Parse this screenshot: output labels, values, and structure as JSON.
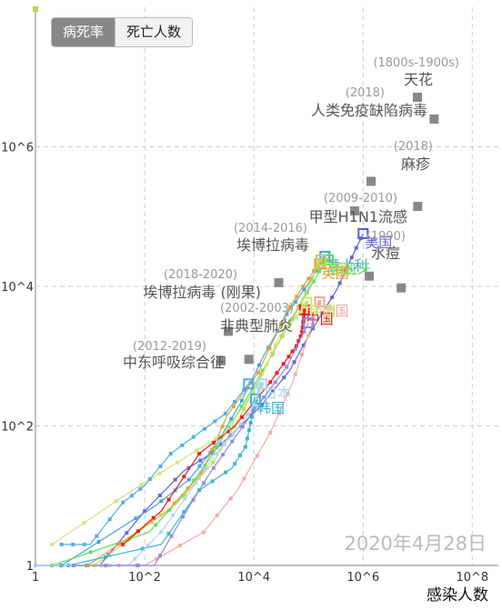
{
  "toggle": {
    "active_label": "病死率",
    "inactive_label": "死亡人数"
  },
  "date_text": "2020年4月28日",
  "chart_data": {
    "type": "scatter",
    "xlabel": "感染人数",
    "ylabel": "",
    "xscale": "log",
    "yscale": "log",
    "xlim": [
      1,
      300000000
    ],
    "ylim": [
      1,
      100000000
    ],
    "grid": true,
    "x_ticks": [
      {
        "label": "1",
        "value": 1
      },
      {
        "label": "10^2",
        "value": 100
      },
      {
        "label": "10^4",
        "value": 10000
      },
      {
        "label": "10^6",
        "value": 1000000
      },
      {
        "label": "10^8",
        "value": 100000000
      }
    ],
    "y_ticks": [
      {
        "label": "1",
        "value": 1
      },
      {
        "label": "10^2",
        "value": 100
      },
      {
        "label": "10^4",
        "value": 10000
      },
      {
        "label": "10^6",
        "value": 1000000
      }
    ],
    "historical_points": [
      {
        "name": "天花",
        "period": "(1800s-1900s)",
        "x": 20000000,
        "y": 2500000
      },
      {
        "name": "人类免疫缺陷病毒",
        "period": "(2018)",
        "x": 0,
        "y": 0
      },
      {
        "name": "",
        "period": "",
        "x": 1400000,
        "y": 320000
      },
      {
        "name": "麻疹",
        "period": "(2018)",
        "x": 10000000,
        "y": 140000
      },
      {
        "name": "甲型H1N1流感",
        "period": "(2009-2010)",
        "x": 0,
        "y": 0
      },
      {
        "name": "水痘",
        "period": "(1990)",
        "x": 1300000,
        "y": 14000
      },
      {
        "name": "",
        "period": "",
        "x": 5000000,
        "y": 9500
      },
      {
        "name": "埃博拉病毒",
        "period": "(2014-2016)",
        "x": 28600,
        "y": 11300
      },
      {
        "name": "埃博拉病毒 (刚果)",
        "period": "(2018-2020)",
        "x": 3400,
        "y": 2270
      },
      {
        "name": "非典型肺炎",
        "period": "(2002-2003)",
        "x": 8100,
        "y": 900
      },
      {
        "name": "中东呼吸综合征",
        "period": "(2012-2019)",
        "x": 2500,
        "y": 860
      }
    ],
    "countries": [
      {
        "name": "美国",
        "color": "#5b5fd6",
        "points": [
          [
            1,
            1
          ],
          [
            15,
            1
          ],
          [
            100,
            6
          ],
          [
            500,
            22
          ],
          [
            1700,
            41
          ],
          [
            4600,
            85
          ],
          [
            14000,
            200
          ],
          [
            45000,
            620
          ],
          [
            120000,
            2500
          ],
          [
            330000,
            9000
          ],
          [
            620000,
            26000
          ],
          [
            1000000,
            57000
          ]
        ]
      },
      {
        "name": "意大利",
        "color": "#3aa3e3",
        "points": [
          [
            3,
            1
          ],
          [
            150,
            7
          ],
          [
            650,
            17
          ],
          [
            2000,
            52
          ],
          [
            6000,
            230
          ],
          [
            15000,
            1000
          ],
          [
            40000,
            4000
          ],
          [
            100000,
            11000
          ],
          [
            170000,
            22000
          ],
          [
            200000,
            27000
          ]
        ]
      },
      {
        "name": "西班牙",
        "color": "#55e055",
        "points": [
          [
            2,
            1
          ],
          [
            120,
            3
          ],
          [
            500,
            10
          ],
          [
            1600,
            35
          ],
          [
            6000,
            190
          ],
          [
            18000,
            830
          ],
          [
            50000,
            3400
          ],
          [
            110000,
            10000
          ],
          [
            200000,
            23000
          ],
          [
            230000,
            24000
          ]
        ]
      },
      {
        "name": "英国",
        "color": "#e0a030",
        "points": [
          [
            9,
            1
          ],
          [
            260,
            6
          ],
          [
            1100,
            21
          ],
          [
            3300,
            144
          ],
          [
            12000,
            580
          ],
          [
            40000,
            4300
          ],
          [
            80000,
            10000
          ],
          [
            140000,
            19000
          ],
          [
            160000,
            21000
          ]
        ]
      },
      {
        "name": "法国",
        "color": "#c8d060",
        "points": [
          [
            12,
            1
          ],
          [
            400,
            8
          ],
          [
            1800,
            30
          ],
          [
            5400,
            130
          ],
          [
            14000,
            560
          ],
          [
            40000,
            2600
          ],
          [
            90000,
            8000
          ],
          [
            160000,
            23000
          ],
          [
            170000,
            24000
          ]
        ]
      },
      {
        "name": "德国",
        "color": "#f4a6a0",
        "points": [
          [
            16,
            1
          ],
          [
            100,
            1
          ],
          [
            1200,
            3
          ],
          [
            5000,
            12
          ],
          [
            20000,
            80
          ],
          [
            50000,
            400
          ],
          [
            100000,
            2000
          ],
          [
            150000,
            5000
          ],
          [
            160000,
            6000
          ]
        ]
      },
      {
        "name": "中国",
        "color": "#ee1111",
        "points": [
          [
            40,
            2
          ],
          [
            200,
            6
          ],
          [
            1000,
            40
          ],
          [
            4500,
            100
          ],
          [
            20000,
            425
          ],
          [
            40000,
            900
          ],
          [
            60000,
            1400
          ],
          [
            75000,
            2100
          ],
          [
            80000,
            3000
          ],
          [
            82000,
            3300
          ],
          [
            84000,
            4600
          ]
        ]
      },
      {
        "name": "伊朗",
        "color": "#c8e878",
        "points": [
          [
            2,
            2
          ],
          [
            60,
            12
          ],
          [
            400,
            30
          ],
          [
            3000,
            80
          ],
          [
            12000,
            400
          ],
          [
            30000,
            2000
          ],
          [
            60000,
            3600
          ],
          [
            90000,
            5600
          ],
          [
            93000,
            5900
          ]
        ]
      },
      {
        "name": "韩国",
        "color": "#2db3d6",
        "points": [
          [
            4,
            1
          ],
          [
            200,
            2
          ],
          [
            1000,
            12
          ],
          [
            4000,
            25
          ],
          [
            7000,
            50
          ],
          [
            8500,
            100
          ],
          [
            9700,
            165
          ],
          [
            10500,
            230
          ],
          [
            10750,
            244
          ]
        ]
      },
      {
        "name": "日本",
        "color": "#a7d7f0",
        "points": [
          [
            1,
            1
          ],
          [
            50,
            1
          ],
          [
            200,
            3
          ],
          [
            700,
            12
          ],
          [
            2000,
            40
          ],
          [
            5000,
            90
          ],
          [
            10000,
            200
          ],
          [
            13000,
            350
          ],
          [
            14000,
            400
          ]
        ]
      },
      {
        "name": "",
        "color": "#8888e0",
        "points": [
          [
            5,
            1
          ],
          [
            150,
            1
          ],
          [
            500,
            5
          ],
          [
            1500,
            20
          ],
          [
            4000,
            60
          ],
          [
            12000,
            200
          ],
          [
            40000,
            700
          ],
          [
            100000,
            3000
          ]
        ]
      },
      {
        "name": "",
        "color": "#4aa8e8",
        "points": [
          [
            3,
            2
          ],
          [
            10,
            2
          ],
          [
            40,
            8
          ],
          [
            100,
            14
          ],
          [
            300,
            40
          ],
          [
            1000,
            80
          ],
          [
            3000,
            150
          ],
          [
            8000,
            400
          ]
        ]
      }
    ]
  }
}
